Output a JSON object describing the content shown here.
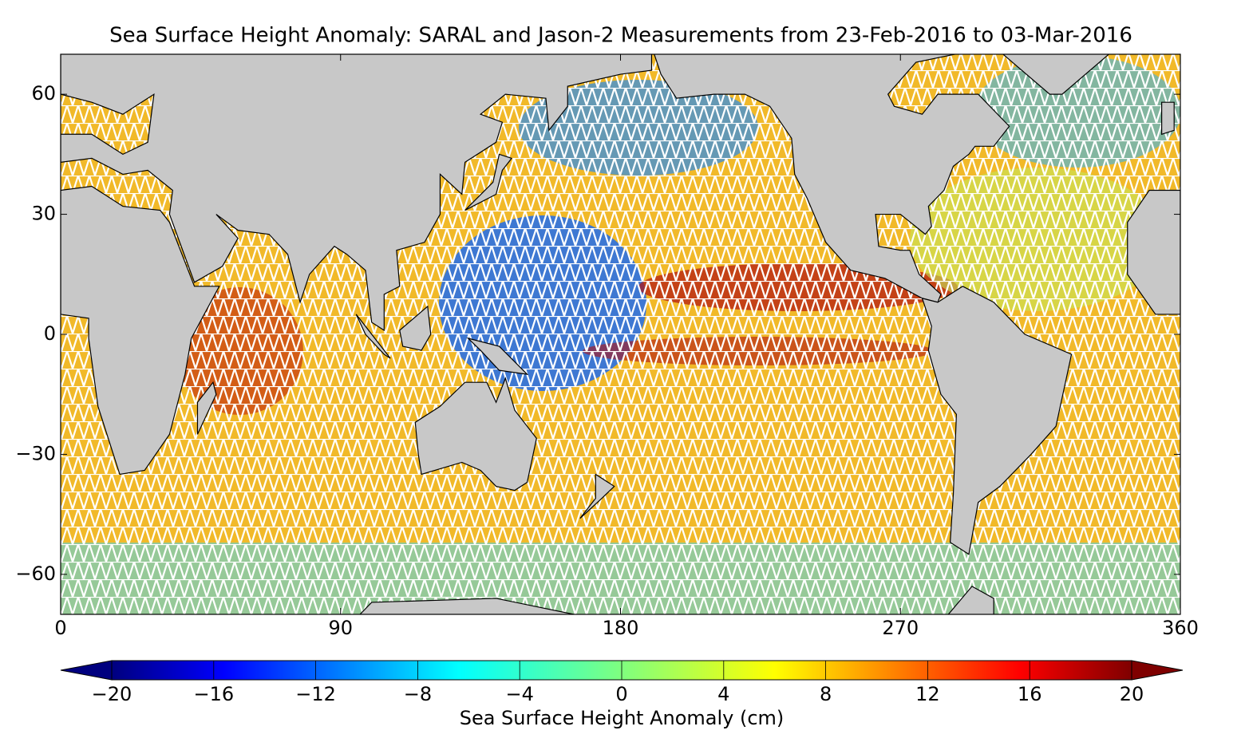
{
  "chart_data": {
    "type": "map",
    "title": "Sea Surface Height Anomaly: SARAL and Jason-2 Measurements from 23-Feb-2016 to 03-Mar-2016",
    "xlim": [
      0,
      360
    ],
    "ylim": [
      -70,
      70
    ],
    "xticks": [
      0,
      90,
      180,
      270,
      360
    ],
    "yticks": [
      {
        "value": -60,
        "label": "−60"
      },
      {
        "value": -30,
        "label": "−30"
      },
      0,
      30,
      60
    ],
    "colorbar": {
      "label": "Sea Surface Height Anomaly (cm)",
      "colormap": "jet",
      "clim": [
        -20,
        20
      ],
      "ticks": [
        {
          "value": -20,
          "label": "−20"
        },
        {
          "value": -16,
          "label": "−16"
        },
        {
          "value": -12,
          "label": "−12"
        },
        {
          "value": -8,
          "label": "−8"
        },
        {
          "value": -4,
          "label": "−4"
        },
        0,
        4,
        8,
        12,
        16,
        20
      ]
    }
  }
}
